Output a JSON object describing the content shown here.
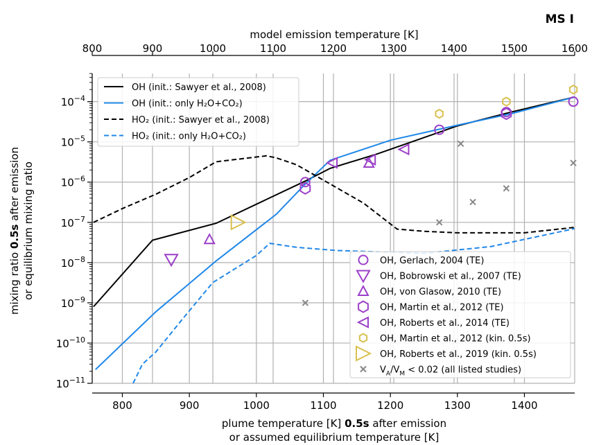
{
  "chart_data": {
    "type": "scatter",
    "panel_label": "MS I",
    "xlabel_line1_prefix": "plume temperature [K] ",
    "xlabel_line1_bold": "0.5s",
    "xlabel_line1_suffix": " after emission",
    "xlabel_line2": "or assumed equilibrium temperature [K]",
    "ylabel_line1_prefix": "mixing ratio ",
    "ylabel_line1_bold": "0.5s",
    "ylabel_line1_suffix": " after emission",
    "ylabel_line2": "or equilibrium mixing ratio",
    "top_xlabel": "model emission temperature [K]",
    "xlim": [
      755,
      1475
    ],
    "top_xlim": [
      800,
      1600
    ],
    "ylim_log10": [
      -11,
      -3.3
    ],
    "yscale": "log",
    "grid": true,
    "x_ticks": [
      800,
      900,
      1000,
      1100,
      1200,
      1300,
      1400
    ],
    "top_x_ticks": [
      800,
      900,
      1000,
      1100,
      1200,
      1300,
      1400,
      1500,
      1600
    ],
    "y_ticks_exponents": [
      -11,
      -10,
      -9,
      -8,
      -7,
      -6,
      -5,
      -4
    ],
    "legend_lines_placement": "upper-left",
    "legend_markers_placement": "lower-right",
    "line_series": [
      {
        "name": "OH (init.: Sawyer et al., 2008)",
        "color": "#000000",
        "dash": "solid",
        "x": [
          757,
          845,
          940,
          1075,
          1110,
          1180,
          1300,
          1380,
          1475
        ],
        "y": [
          8e-10,
          3.6e-08,
          9.5e-08,
          1.1e-06,
          2.2e-06,
          5e-06,
          2.5e-05,
          5.5e-05,
          0.00013
        ]
      },
      {
        "name": "OH (init.: only H₂O+CO₂)",
        "color": "#1f87e8",
        "dash": "solid",
        "x": [
          760,
          850,
          940,
          1030,
          1070,
          1110,
          1200,
          1300,
          1380,
          1475
        ],
        "y": [
          2.2e-11,
          6e-10,
          1.1e-08,
          1.6e-07,
          8e-07,
          3.5e-06,
          1.1e-05,
          2.6e-05,
          5e-05,
          0.00013
        ]
      },
      {
        "name": "HO₂ (init.: Sawyer et al., 2008)",
        "color": "#000000",
        "dash": "dashed",
        "x": [
          757,
          800,
          850,
          900,
          940,
          1015,
          1030,
          1060,
          1110,
          1160,
          1210,
          1250,
          1300,
          1400,
          1475
        ],
        "y": [
          1e-07,
          2.2e-07,
          5e-07,
          1.3e-06,
          3.2e-06,
          4.5e-06,
          4e-06,
          2.7e-06,
          9e-07,
          3e-07,
          6.8e-08,
          6e-08,
          5.5e-08,
          5.5e-08,
          7.5e-08
        ]
      },
      {
        "name": "HO₂ (init.: only H₂O+CO₂)",
        "color": "#1f87e8",
        "dash": "dashed",
        "x": [
          816,
          830,
          850,
          890,
          935,
          1000,
          1020,
          1060,
          1120,
          1250,
          1350,
          1475
        ],
        "y": [
          1e-11,
          3e-11,
          6e-11,
          4e-10,
          3.2e-09,
          1.5e-08,
          3e-08,
          2.4e-08,
          2e-08,
          1.7e-08,
          2.5e-08,
          7e-08
        ]
      }
    ],
    "marker_series": [
      {
        "name": "OH, Gerlach, 2004 (TE)",
        "marker": "circle",
        "color": "#9b3fc9",
        "x": [
          1073,
          1273,
          1373,
          1473
        ],
        "y": [
          1e-06,
          2e-05,
          5.5e-05,
          0.0001
        ]
      },
      {
        "name": "OH, Bobrowski et al., 2007 (TE)",
        "marker": "triangle-down",
        "color": "#9b3fc9",
        "x": [
          873
        ],
        "y": [
          1.2e-08
        ]
      },
      {
        "name": "OH, von Glasow, 2010 (TE)",
        "marker": "triangle-up",
        "color": "#9b3fc9",
        "x": [
          930,
          1168
        ],
        "y": [
          3.8e-08,
          3e-06
        ]
      },
      {
        "name": "OH, Martin et al., 2012 (TE)",
        "marker": "hexagon",
        "color": "#9b3fc9",
        "x": [
          1073,
          1373
        ],
        "y": [
          7e-07,
          5e-05
        ]
      },
      {
        "name": "OH, Roberts et al., 2014 (TE)",
        "marker": "triangle-left",
        "color": "#9b3fc9",
        "x": [
          1113,
          1170,
          1220
        ],
        "y": [
          3e-06,
          3.6e-06,
          6.5e-06
        ]
      },
      {
        "name": "OH, Martin et al., 2012 (kin. 0.5s)",
        "marker": "hexagon-small",
        "color": "#d9c04e",
        "x": [
          1273,
          1373,
          1473
        ],
        "y": [
          5e-05,
          0.0001,
          0.0002
        ]
      },
      {
        "name": "OH, Roberts et al., 2019 (kin. 0.5s)",
        "marker": "triangle-right-large",
        "color": "#d9c04e",
        "x": [
          973
        ],
        "y": [
          1e-07
        ]
      },
      {
        "name": "Vₐ/Vₘ < 0.02 (all listed studies)",
        "marker": "x",
        "color": "#888888",
        "x": [
          1073,
          1273,
          1305,
          1323,
          1373,
          1473
        ],
        "y": [
          1e-09,
          1e-07,
          9e-06,
          3.2e-07,
          7e-07,
          3e-06
        ]
      }
    ],
    "legend_markers_text": [
      "OH, Gerlach, 2004 (TE)",
      "OH, Bobrowski et al., 2007 (TE)",
      "OH, von Glasow, 2010 (TE)",
      "OH, Martin et al., 2012 (TE)",
      "OH, Roberts et al., 2014 (TE)",
      "OH, Martin et al., 2012 (kin. 0.5s)",
      "OH, Roberts et al., 2019 (kin. 0.5s)"
    ],
    "legend_last_prefix": "V",
    "legend_last_sub1": "A",
    "legend_last_mid": "/V",
    "legend_last_sub2": "M",
    "legend_last_suffix": " < 0.02 (all listed studies)"
  }
}
